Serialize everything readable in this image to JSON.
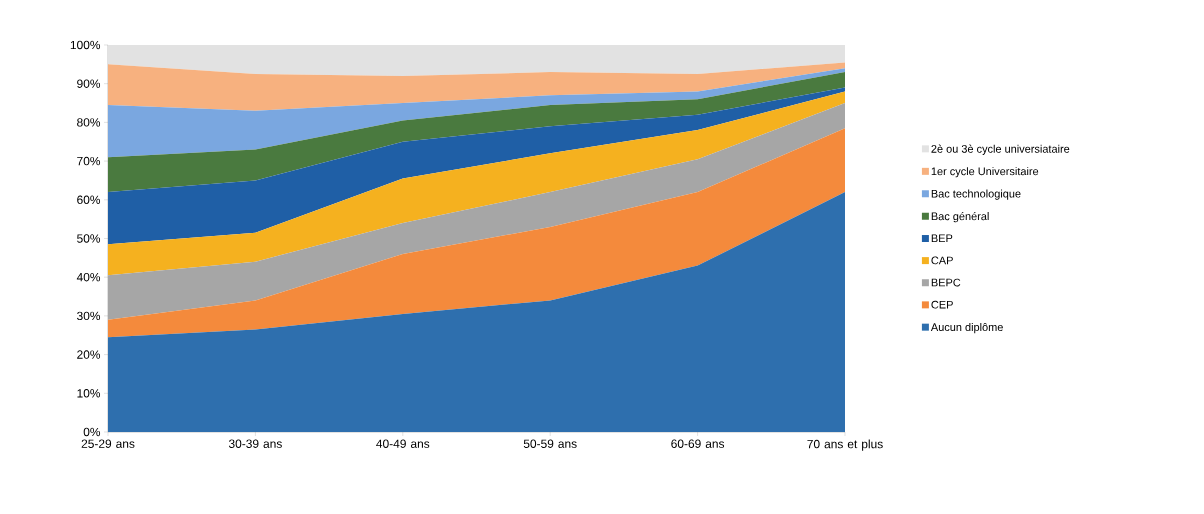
{
  "chart_data": {
    "type": "area",
    "stacked": true,
    "categories": [
      "25-29 ans",
      "30-39 ans",
      "40-49 ans",
      "50-59 ans",
      "60-69 ans",
      "70 ans et plus"
    ],
    "series": [
      {
        "name": "Aucun diplôme",
        "color": "#2e6fae",
        "values": [
          24.5,
          26.5,
          30.5,
          34,
          43,
          62
        ]
      },
      {
        "name": "CEP",
        "color": "#f48a3c",
        "values": [
          4.5,
          7.5,
          15.5,
          19,
          19,
          16.5
        ]
      },
      {
        "name": "BEPC",
        "color": "#a6a6a6",
        "values": [
          11.5,
          10,
          8,
          9,
          8.5,
          6.5
        ]
      },
      {
        "name": "CAP",
        "color": "#f5b11f",
        "values": [
          8,
          7.5,
          11.5,
          10,
          7.5,
          3
        ]
      },
      {
        "name": "BEP",
        "color": "#1f5fa6",
        "values": [
          13.5,
          13.5,
          9.5,
          7,
          4,
          1
        ]
      },
      {
        "name": "Bac général",
        "color": "#4a7a3f",
        "values": [
          9,
          8,
          5.5,
          5.5,
          4,
          4
        ]
      },
      {
        "name": "Bac technologique",
        "color": "#7aa7e0",
        "values": [
          13.5,
          10,
          4.5,
          2.5,
          2,
          1
        ]
      },
      {
        "name": "1er cycle Universitaire",
        "color": "#f7b17f",
        "values": [
          10.5,
          9.5,
          7,
          6,
          4.5,
          1.5
        ]
      },
      {
        "name": "2è ou 3è cycle universiataire",
        "color": "#e2e2e2",
        "values": [
          5,
          7.5,
          8,
          7,
          7.5,
          4.5
        ]
      }
    ],
    "ylim": [
      0,
      100
    ],
    "yticks": [
      {
        "value": 0,
        "label": "0%"
      },
      {
        "value": 10,
        "label": "10%"
      },
      {
        "value": 20,
        "label": "20%"
      },
      {
        "value": 30,
        "label": "30%"
      },
      {
        "value": 40,
        "label": "40%"
      },
      {
        "value": 50,
        "label": "50%"
      },
      {
        "value": 60,
        "label": "60%"
      },
      {
        "value": 70,
        "label": "70%"
      },
      {
        "value": 80,
        "label": "80%"
      },
      {
        "value": 90,
        "label": "90%"
      },
      {
        "value": 100,
        "label": "100%"
      }
    ],
    "legend": "right",
    "grid": false
  }
}
